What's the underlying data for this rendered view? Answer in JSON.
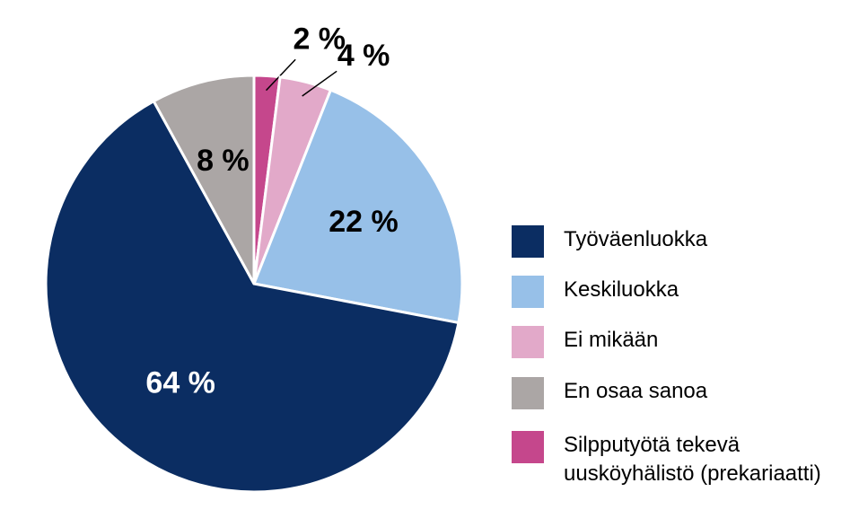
{
  "chart_data": {
    "type": "pie",
    "categories": [
      "Työväenluokka",
      "Keskiluokka",
      "Ei mikään",
      "En osaa sanoa",
      "Silpputyötä tekevä uusköyhälistö (prekariaatti)"
    ],
    "values": [
      64,
      22,
      4,
      8,
      2
    ],
    "value_labels": [
      "64 %",
      "22 %",
      "4 %",
      "8 %",
      "2 %"
    ],
    "colors": [
      "#0b2d62",
      "#97c0e8",
      "#e2a9c9",
      "#aba6a5",
      "#c5478c"
    ]
  }
}
